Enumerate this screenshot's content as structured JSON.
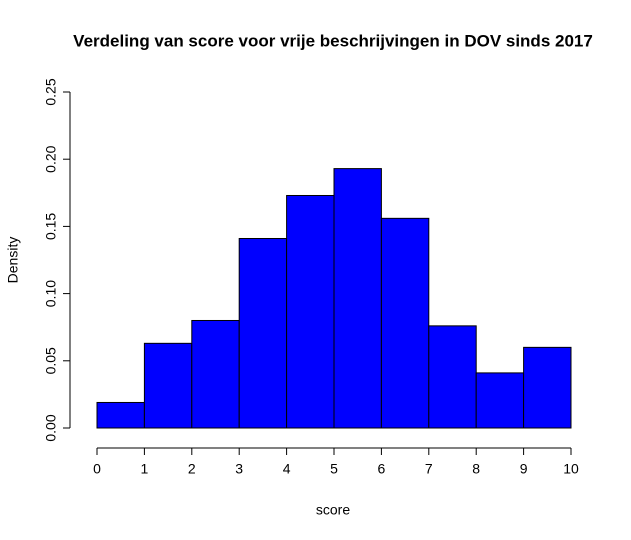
{
  "chart_data": {
    "type": "histogram",
    "title": "Verdeling van score voor vrije beschrijvingen in DOV sinds 2017",
    "x_label": "score",
    "y_label": "Density",
    "bins": [
      0,
      1,
      2,
      3,
      4,
      5,
      6,
      7,
      8,
      9,
      10
    ],
    "values": [
      0.019,
      0.063,
      0.08,
      0.141,
      0.173,
      0.193,
      0.156,
      0.076,
      0.041,
      0.06
    ],
    "color": "#0000ff",
    "xlim": [
      0,
      10
    ],
    "xticks": [
      0,
      1,
      2,
      3,
      4,
      5,
      6,
      7,
      8,
      9,
      10
    ],
    "ylim": [
      0,
      0.25
    ],
    "yticks": [
      {
        "value": 0,
        "label": "0.00"
      },
      {
        "value": 0.05,
        "label": "0.05"
      },
      {
        "value": 0.1,
        "label": "0.10"
      },
      {
        "value": 0.15,
        "label": "0.15"
      },
      {
        "value": 0.2,
        "label": "0.20"
      },
      {
        "value": 0.25,
        "label": "0.25"
      }
    ]
  }
}
